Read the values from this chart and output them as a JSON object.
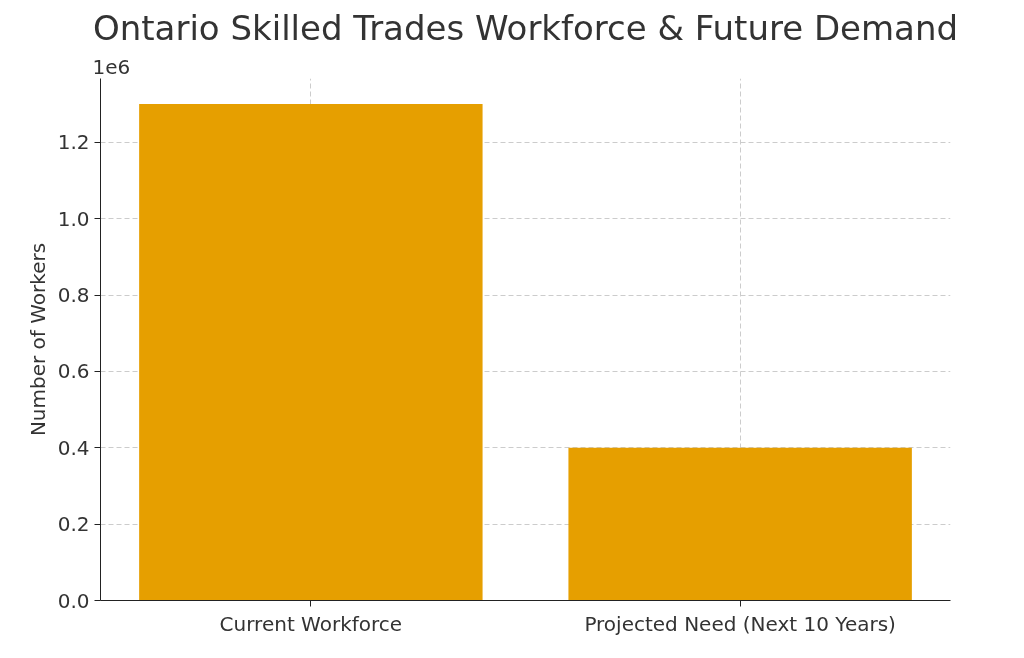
{
  "chart_data": {
    "type": "bar",
    "title": "Ontario Skilled Trades Workforce & Future Demand",
    "ylabel": "Number of Workers",
    "categories": [
      "Current Workforce",
      "Projected Need (Next 10 Years)"
    ],
    "values": [
      1.3,
      0.4
    ],
    "color": "#e69f00",
    "ylim": [
      0,
      1.367
    ],
    "yticks": [
      {
        "value": 0,
        "label": "0.0"
      },
      {
        "value": 0.2,
        "label": "0.2"
      },
      {
        "value": 0.4,
        "label": "0.4"
      },
      {
        "value": 0.6,
        "label": "0.6"
      },
      {
        "value": 0.8,
        "label": "0.8"
      },
      {
        "value": 1.0,
        "label": "1.0"
      },
      {
        "value": 1.2,
        "label": "1.2"
      }
    ],
    "annotations": [
      "1e6"
    ],
    "grid": true
  }
}
